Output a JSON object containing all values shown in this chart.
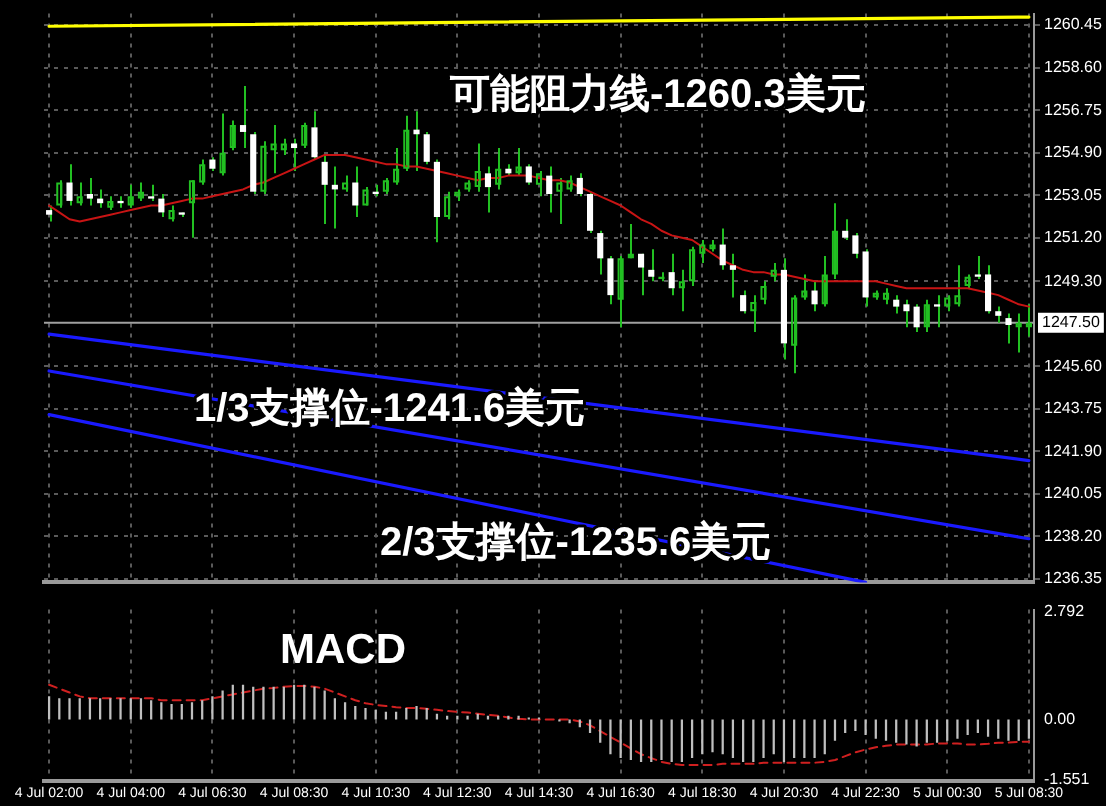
{
  "chart_data": [
    {
      "type": "candlestick",
      "categories": [
        "4 Jul 02:00",
        null,
        null,
        null,
        null,
        null,
        null,
        null,
        "4 Jul 04:00",
        null,
        null,
        null,
        null,
        null,
        null,
        null,
        "4 Jul 06:30",
        null,
        null,
        null,
        null,
        null,
        null,
        null,
        "4 Jul 08:30",
        null,
        null,
        null,
        null,
        null,
        null,
        null,
        "4 Jul 10:30",
        null,
        null,
        null,
        null,
        null,
        null,
        null,
        "4 Jul 12:30",
        null,
        null,
        null,
        null,
        null,
        null,
        null,
        "4 Jul 14:30",
        null,
        null,
        null,
        null,
        null,
        null,
        null,
        "4 Jul 16:30",
        null,
        null,
        null,
        null,
        null,
        null,
        null,
        "4 Jul 18:30",
        null,
        null,
        null,
        null,
        null,
        null,
        null,
        "4 Jul 20:30",
        null,
        null,
        null,
        null,
        null,
        null,
        null,
        "4 Jul 22:30",
        null,
        null,
        null,
        null,
        null,
        null,
        null,
        "5 Jul 00:30",
        null,
        null,
        null,
        null,
        null,
        null,
        null,
        "5 Jul 08:30"
      ],
      "ohlc": [
        [
          1252.4,
          1252.6,
          1251.9,
          1252.2
        ],
        [
          1252.6,
          1253.7,
          1252.5,
          1253.6
        ],
        [
          1253.6,
          1254.4,
          1252.6,
          1252.8
        ],
        [
          1252.7,
          1253.6,
          1252.6,
          1253.0
        ],
        [
          1253.1,
          1253.8,
          1252.6,
          1252.9
        ],
        [
          1252.9,
          1253.3,
          1252.5,
          1252.7
        ],
        [
          1252.5,
          1253.0,
          1252.4,
          1252.8
        ],
        [
          1252.8,
          1253.0,
          1252.5,
          1252.7
        ],
        [
          1252.6,
          1253.5,
          1252.5,
          1253.0
        ],
        [
          1252.9,
          1253.6,
          1252.8,
          1253.2
        ],
        [
          1253.0,
          1253.5,
          1252.8,
          1252.9
        ],
        [
          1252.9,
          1253.1,
          1252.1,
          1252.3
        ],
        [
          1252.0,
          1252.6,
          1251.9,
          1252.4
        ],
        [
          1252.3,
          1252.3,
          1252.1,
          1252.2
        ],
        [
          1252.7,
          1253.7,
          1251.2,
          1253.7
        ],
        [
          1253.6,
          1254.6,
          1253.5,
          1254.4
        ],
        [
          1254.6,
          1254.7,
          1254.1,
          1254.2
        ],
        [
          1254.0,
          1256.6,
          1253.9,
          1254.9
        ],
        [
          1255.1,
          1256.3,
          1255.0,
          1256.1
        ],
        [
          1256.1,
          1257.8,
          1255.1,
          1255.8
        ],
        [
          1255.7,
          1255.8,
          1253.1,
          1253.2
        ],
        [
          1253.2,
          1255.4,
          1253.1,
          1255.2
        ],
        [
          1255.0,
          1256.1,
          1254.0,
          1255.3
        ],
        [
          1255.0,
          1255.5,
          1254.8,
          1255.3
        ],
        [
          1255.3,
          1255.5,
          1254.1,
          1255.1
        ],
        [
          1255.2,
          1256.2,
          1255.1,
          1256.1
        ],
        [
          1256.0,
          1256.7,
          1254.6,
          1254.7
        ],
        [
          1254.5,
          1254.8,
          1251.8,
          1253.5
        ],
        [
          1253.5,
          1254.3,
          1251.6,
          1253.3
        ],
        [
          1253.3,
          1253.9,
          1253.2,
          1253.6
        ],
        [
          1253.6,
          1254.3,
          1252.1,
          1252.6
        ],
        [
          1252.6,
          1253.4,
          1252.6,
          1253.3
        ],
        [
          1253.2,
          1253.5,
          1253.0,
          1253.1
        ],
        [
          1253.2,
          1253.8,
          1253.1,
          1253.7
        ],
        [
          1253.6,
          1255.1,
          1253.5,
          1254.2
        ],
        [
          1254.2,
          1256.5,
          1254.1,
          1255.9
        ],
        [
          1255.9,
          1256.7,
          1254.1,
          1255.7
        ],
        [
          1255.7,
          1255.8,
          1254.4,
          1254.5
        ],
        [
          1254.5,
          1254.6,
          1251.0,
          1252.1
        ],
        [
          1252.1,
          1253.2,
          1252.0,
          1253.0
        ],
        [
          1253.0,
          1253.3,
          1252.8,
          1253.2
        ],
        [
          1253.3,
          1253.7,
          1253.2,
          1253.6
        ],
        [
          1253.4,
          1255.3,
          1253.2,
          1254.1
        ],
        [
          1254.0,
          1254.3,
          1252.3,
          1253.4
        ],
        [
          1253.5,
          1255.1,
          1253.3,
          1254.2
        ],
        [
          1254.2,
          1254.4,
          1253.9,
          1254.0
        ],
        [
          1254.0,
          1255.1,
          1253.9,
          1254.3
        ],
        [
          1254.3,
          1254.4,
          1253.5,
          1253.6
        ],
        [
          1253.5,
          1254.1,
          1253.0,
          1254.0
        ],
        [
          1253.9,
          1254.3,
          1252.3,
          1253.1
        ],
        [
          1253.2,
          1253.8,
          1251.8,
          1253.6
        ],
        [
          1253.3,
          1253.9,
          1253.2,
          1253.7
        ],
        [
          1253.8,
          1254.0,
          1253.0,
          1253.1
        ],
        [
          1253.1,
          1253.2,
          1251.4,
          1251.5
        ],
        [
          1251.4,
          1251.5,
          1249.6,
          1250.3
        ],
        [
          1250.3,
          1250.4,
          1248.3,
          1248.7
        ],
        [
          1248.5,
          1250.4,
          1247.3,
          1250.3
        ],
        [
          1250.3,
          1251.8,
          1250.3,
          1250.5
        ],
        [
          1250.5,
          1250.5,
          1248.7,
          1249.9
        ],
        [
          1249.8,
          1250.7,
          1249.3,
          1249.5
        ],
        [
          1249.4,
          1249.7,
          1249.3,
          1249.5
        ],
        [
          1249.7,
          1250.5,
          1248.7,
          1249.0
        ],
        [
          1249.0,
          1249.8,
          1248.0,
          1249.3
        ],
        [
          1249.3,
          1250.8,
          1249.1,
          1250.7
        ],
        [
          1250.5,
          1251.1,
          1250.1,
          1250.9
        ],
        [
          1250.7,
          1251.1,
          1250.6,
          1250.9
        ],
        [
          1250.9,
          1251.6,
          1249.8,
          1250.0
        ],
        [
          1250.0,
          1250.5,
          1248.6,
          1249.8
        ],
        [
          1248.7,
          1248.9,
          1247.9,
          1248.0
        ],
        [
          1248.0,
          1248.7,
          1247.1,
          1248.4
        ],
        [
          1248.5,
          1249.3,
          1248.3,
          1249.1
        ],
        [
          1249.5,
          1250.1,
          1249.3,
          1249.8
        ],
        [
          1249.8,
          1250.3,
          1245.9,
          1246.6
        ],
        [
          1246.5,
          1248.7,
          1245.3,
          1248.6
        ],
        [
          1248.6,
          1249.6,
          1248.5,
          1248.9
        ],
        [
          1248.9,
          1249.3,
          1248.0,
          1248.3
        ],
        [
          1248.3,
          1250.4,
          1248.2,
          1249.6
        ],
        [
          1249.6,
          1252.7,
          1249.4,
          1251.5
        ],
        [
          1251.5,
          1252.0,
          1251.1,
          1251.2
        ],
        [
          1251.3,
          1251.4,
          1250.3,
          1250.5
        ],
        [
          1250.6,
          1250.7,
          1248.2,
          1248.6
        ],
        [
          1248.6,
          1248.9,
          1248.5,
          1248.8
        ],
        [
          1248.5,
          1249.0,
          1248.3,
          1248.8
        ],
        [
          1248.5,
          1248.7,
          1247.9,
          1248.2
        ],
        [
          1248.3,
          1248.5,
          1247.3,
          1248.0
        ],
        [
          1248.2,
          1248.3,
          1247.1,
          1247.3
        ],
        [
          1247.3,
          1248.5,
          1247.1,
          1248.3
        ],
        [
          1248.3,
          1248.7,
          1247.3,
          1248.2
        ],
        [
          1248.2,
          1248.7,
          1248.0,
          1248.6
        ],
        [
          1248.3,
          1250.0,
          1248.2,
          1248.7
        ],
        [
          1249.1,
          1249.6,
          1249.0,
          1249.5
        ],
        [
          1249.6,
          1250.4,
          1249.4,
          1249.5
        ],
        [
          1249.6,
          1250.0,
          1247.9,
          1248.0
        ],
        [
          1248.0,
          1248.2,
          1247.5,
          1247.8
        ],
        [
          1247.7,
          1247.9,
          1246.6,
          1247.4
        ],
        [
          1247.3,
          1247.9,
          1246.2,
          1247.5
        ],
        [
          1247.3,
          1248.3,
          1246.9,
          1247.5
        ]
      ],
      "series": [
        {
          "type": "line",
          "color": "#c81414",
          "values": [
            1252.6,
            1252.3,
            1252.0,
            1251.9,
            1252.0,
            1252.1,
            1252.2,
            1252.3,
            1252.4,
            1252.5,
            1252.6,
            1252.6,
            1252.7,
            1252.8,
            1252.9,
            1252.9,
            1253.0,
            1253.1,
            1253.2,
            1253.3,
            1253.5,
            1253.6,
            1253.8,
            1254.0,
            1254.2,
            1254.4,
            1254.6,
            1254.8,
            1254.8,
            1254.8,
            1254.7,
            1254.6,
            1254.5,
            1254.4,
            1254.4,
            1254.3,
            1254.3,
            1254.2,
            1254.1,
            1254.0,
            1253.9,
            1253.8,
            1253.7,
            1253.8,
            1253.8,
            1253.9,
            1253.9,
            1253.9,
            1253.8,
            1253.7,
            1253.7,
            1253.6,
            1253.4,
            1253.2,
            1253.0,
            1252.8,
            1252.6,
            1252.3,
            1252.0,
            1251.8,
            1251.5,
            1251.3,
            1251.2,
            1251.1,
            1250.8,
            1250.5,
            1250.2,
            1250.0,
            1249.8,
            1249.7,
            1249.7,
            1249.6,
            1249.6,
            1249.5,
            1249.4,
            1249.3,
            1249.3,
            1249.3,
            1249.3,
            1249.3,
            1249.3,
            1249.3,
            1249.2,
            1249.1,
            1249.0,
            1249.0,
            1249.0,
            1249.0,
            1249.0,
            1249.0,
            1249.0,
            1248.9,
            1248.8,
            1248.7,
            1248.5,
            1248.3,
            1248.2
          ]
        },
        {
          "type": "line",
          "color": "#ffff00",
          "x": [
            "4 Jul 02:00",
            "5 Jul 08:30"
          ],
          "values": [
            1260.4,
            1260.8
          ]
        },
        {
          "type": "line",
          "color": "#1a1aff",
          "x": [
            "4 Jul 02:00",
            "5 Jul 08:30"
          ],
          "values": [
            1247.0,
            1241.5
          ]
        },
        {
          "type": "line",
          "color": "#1a1aff",
          "x": [
            "4 Jul 02:00",
            "5 Jul 08:30"
          ],
          "values": [
            1245.4,
            1238.1
          ]
        },
        {
          "type": "line",
          "color": "#1a1aff",
          "x": [
            "4 Jul 02:00",
            "4 Jul 22:30"
          ],
          "values": [
            1243.5,
            1236.2
          ]
        }
      ],
      "ylim": [
        1236.2,
        1260.95
      ],
      "yticks": [
        1260.45,
        {
          "value": 1258.6,
          "label": "1258.60"
        },
        1256.75,
        {
          "value": 1254.9,
          "label": "1254.90"
        },
        1253.05,
        {
          "value": 1251.2,
          "label": "1251.20"
        },
        {
          "value": 1249.3,
          "label": "1249.30"
        },
        {
          "value": 1245.6,
          "label": "1245.60"
        },
        1243.75,
        {
          "value": 1241.9,
          "label": "1241.90"
        },
        1240.05,
        {
          "value": 1238.2,
          "label": "1238.20"
        },
        1236.35
      ],
      "ref_lines": [
        {
          "axis": "y",
          "value": 1247.5,
          "label": "1247.50",
          "color": "#a0a0a0"
        }
      ],
      "annotations": [
        "可能阻力线-1260.3美元",
        "1/3支撑位-1241.6美元",
        "2/3支撑位-1235.6美元"
      ],
      "grid": true,
      "legend": false,
      "marker": "none",
      "tick_labels": "y"
    },
    {
      "type": "bar",
      "title": "MACD",
      "categories": [
        "4 Jul 02:00",
        null,
        null,
        null,
        null,
        null,
        null,
        null,
        "4 Jul 04:00",
        null,
        null,
        null,
        null,
        null,
        null,
        null,
        "4 Jul 06:30",
        null,
        null,
        null,
        null,
        null,
        null,
        null,
        "4 Jul 08:30",
        null,
        null,
        null,
        null,
        null,
        null,
        null,
        "4 Jul 10:30",
        null,
        null,
        null,
        null,
        null,
        null,
        null,
        "4 Jul 12:30",
        null,
        null,
        null,
        null,
        null,
        null,
        null,
        "4 Jul 14:30",
        null,
        null,
        null,
        null,
        null,
        null,
        null,
        "4 Jul 16:30",
        null,
        null,
        null,
        null,
        null,
        null,
        null,
        "4 Jul 18:30",
        null,
        null,
        null,
        null,
        null,
        null,
        null,
        "4 Jul 20:30",
        null,
        null,
        null,
        null,
        null,
        null,
        null,
        "4 Jul 22:30",
        null,
        null,
        null,
        null,
        null,
        null,
        null,
        "5 Jul 00:30",
        null,
        null,
        null,
        null,
        null,
        null,
        null,
        "5 Jul 08:30"
      ],
      "series": [
        {
          "type": "bar",
          "color": "#c0c0c0",
          "values": [
            0.6,
            0.55,
            0.55,
            0.55,
            0.55,
            0.55,
            0.55,
            0.55,
            0.55,
            0.55,
            0.5,
            0.45,
            0.4,
            0.4,
            0.45,
            0.5,
            0.6,
            0.75,
            0.9,
            0.9,
            0.85,
            0.85,
            0.85,
            0.85,
            0.9,
            0.9,
            0.85,
            0.75,
            0.55,
            0.45,
            0.35,
            0.3,
            0.25,
            0.2,
            0.2,
            0.3,
            0.35,
            0.3,
            0.15,
            0.1,
            0.1,
            0.1,
            0.15,
            0.1,
            0.1,
            0.1,
            0.1,
            0.05,
            0.05,
            0,
            -0.05,
            -0.1,
            -0.2,
            -0.35,
            -0.6,
            -0.9,
            -1.0,
            -1.05,
            -1.1,
            -1.1,
            -1.05,
            -1.1,
            -1.1,
            -1.0,
            -0.9,
            -0.85,
            -0.9,
            -1.0,
            -1.1,
            -1.1,
            -1.0,
            -0.9,
            -1.1,
            -1.0,
            -1.0,
            -1.0,
            -0.9,
            -0.55,
            -0.35,
            -0.3,
            -0.4,
            -0.5,
            -0.55,
            -0.6,
            -0.65,
            -0.7,
            -0.6,
            -0.6,
            -0.55,
            -0.5,
            -0.4,
            -0.35,
            -0.45,
            -0.5,
            -0.55,
            -0.55,
            -0.5
          ]
        },
        {
          "type": "line",
          "color": "#d02020",
          "line_style": "dashed",
          "values": [
            0.9,
            0.8,
            0.7,
            0.6,
            0.55,
            0.55,
            0.55,
            0.55,
            0.55,
            0.55,
            0.55,
            0.5,
            0.5,
            0.5,
            0.5,
            0.5,
            0.55,
            0.6,
            0.65,
            0.7,
            0.75,
            0.8,
            0.82,
            0.85,
            0.87,
            0.87,
            0.85,
            0.8,
            0.7,
            0.6,
            0.5,
            0.42,
            0.38,
            0.35,
            0.32,
            0.3,
            0.3,
            0.28,
            0.25,
            0.22,
            0.2,
            0.18,
            0.15,
            0.12,
            0.1,
            0.05,
            0.02,
            0,
            0,
            0,
            0,
            0,
            -0.05,
            -0.15,
            -0.3,
            -0.45,
            -0.6,
            -0.75,
            -0.9,
            -1.0,
            -1.1,
            -1.15,
            -1.18,
            -1.18,
            -1.18,
            -1.18,
            -1.15,
            -1.15,
            -1.15,
            -1.15,
            -1.12,
            -1.12,
            -1.12,
            -1.12,
            -1.12,
            -1.12,
            -1.1,
            -1.05,
            -0.95,
            -0.85,
            -0.78,
            -0.72,
            -0.68,
            -0.65,
            -0.65,
            -0.65,
            -0.65,
            -0.62,
            -0.62,
            -0.62,
            -0.65,
            -0.65,
            -0.63,
            -0.6,
            -0.6,
            -0.58,
            -0.58
          ]
        }
      ],
      "ylim": [
        -1.6,
        2.85
      ],
      "yticks": [
        2.792,
        {
          "value": 0,
          "label": "0.00"
        },
        -1.551
      ],
      "grid": "x",
      "legend": false,
      "marker": "none"
    }
  ]
}
